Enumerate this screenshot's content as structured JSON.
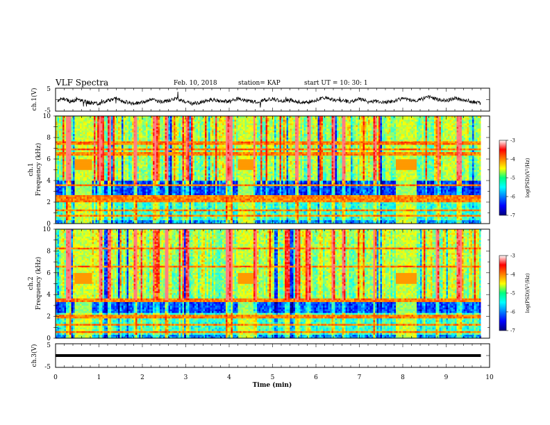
{
  "header": {
    "title": "VLF Spectra",
    "date": "Feb. 10, 2018",
    "station": "station= KAP",
    "start": "start  UT  =   10: 30: 1"
  },
  "chart_data": [
    {
      "type": "line",
      "title": "",
      "ylabel": "ch.1(V)",
      "ylim": [
        -5,
        5
      ],
      "yticks": [
        "5",
        "-5"
      ],
      "xlim": [
        0,
        10
      ],
      "series": [
        {
          "x": [
            0.05,
            0.2,
            0.35,
            0.5,
            0.65,
            0.8,
            1.0,
            1.2,
            1.4,
            1.6,
            1.8,
            2.0,
            2.2,
            2.4,
            2.6,
            2.8,
            3.0,
            3.2,
            3.4,
            3.6,
            3.8,
            4.0,
            4.2,
            4.4,
            4.6,
            4.8,
            5.0,
            5.2,
            5.4,
            5.6,
            5.8,
            6.0,
            6.2,
            6.4,
            6.6,
            6.8,
            7.0,
            7.2,
            7.4,
            7.6,
            7.8,
            8.0,
            8.2,
            8.4,
            8.6,
            8.8,
            9.0,
            9.2,
            9.4,
            9.6,
            9.8
          ],
          "y": [
            -0.5,
            0.5,
            -1,
            0.2,
            -0.8,
            -1.5,
            -2,
            -0.5,
            0.5,
            -1,
            -2,
            -1,
            0,
            -1,
            -0.5,
            0.5,
            -1,
            -1.8,
            -1,
            0,
            -0.5,
            -1,
            0.5,
            -0.5,
            -1,
            -0.3,
            0.5,
            -0.8,
            0,
            -1,
            -1.5,
            -0.3,
            1,
            0,
            -0.5,
            -1,
            0.3,
            -0.5,
            -1,
            -1.5,
            -0.5,
            0.5,
            -0.5,
            0,
            1.2,
            0.2,
            -0.5,
            0.8,
            0,
            -1,
            -1.8
          ]
        }
      ]
    },
    {
      "type": "heatmap",
      "title": "",
      "ylabel": "ch.1\nFrequency  (kHz)",
      "xlim": [
        0,
        10
      ],
      "ylim": [
        0,
        10
      ],
      "yticks": [
        "0",
        "2",
        "4",
        "6",
        "8",
        "10"
      ],
      "colorbar": {
        "label": "log(PSD)(V²/Hz)",
        "ticks": [
          "-3",
          "-4",
          "-5",
          "-6",
          "-7"
        ],
        "range": [
          -7,
          -3
        ]
      },
      "quiet_band_khz": [
        2.5,
        4.0
      ],
      "interference_lines_khz": [
        0.8,
        1.3,
        2.1,
        2.3,
        2.5,
        3.6,
        6.5,
        6.9,
        7.5
      ],
      "bursts_min": [
        [
          0.45,
          0.85
        ],
        [
          4.2,
          4.55
        ],
        [
          7.85,
          8.3
        ]
      ],
      "impulses_min": [
        0.3,
        1.05,
        1.25,
        1.85,
        2.3,
        2.55,
        3.05,
        3.95,
        4.05,
        4.6,
        5.55,
        5.85,
        6.4,
        6.65,
        7.35,
        8.8,
        9.3
      ]
    },
    {
      "type": "heatmap",
      "title": "",
      "ylabel": "ch.2\nFrequency  (kHz)",
      "xlim": [
        0,
        10
      ],
      "ylim": [
        0,
        10
      ],
      "yticks": [
        "0",
        "2",
        "4",
        "6",
        "8",
        "10"
      ],
      "colorbar": {
        "label": "log(PSD)(V²/Hz)",
        "ticks": [
          "-3",
          "-4",
          "-5",
          "-6",
          "-7"
        ],
        "range": [
          -7,
          -3
        ]
      },
      "quiet_band_khz": [
        2.4,
        3.4
      ],
      "interference_lines_khz": [
        0.6,
        1.3,
        1.9,
        2.1,
        3.5,
        6.6,
        8.2
      ],
      "bursts_min": [
        [
          0.45,
          0.85
        ],
        [
          4.2,
          4.55
        ],
        [
          7.85,
          8.3
        ]
      ],
      "impulses_min": [
        0.3,
        1.05,
        1.25,
        1.85,
        2.3,
        2.55,
        3.05,
        3.95,
        4.05,
        4.6,
        5.55,
        5.85,
        6.4,
        6.65,
        7.35,
        8.8,
        9.3
      ]
    },
    {
      "type": "line",
      "title": "",
      "ylabel": "ch.3(V)",
      "xlabel": "Time  (min)",
      "ylim": [
        -5,
        5
      ],
      "yticks": [
        "5",
        "-5"
      ],
      "xlim": [
        0,
        10
      ],
      "xticks": [
        "0",
        "1",
        "2",
        "3",
        "4",
        "5",
        "6",
        "7",
        "8",
        "9",
        "10"
      ],
      "series": [
        {
          "x": [
            0,
            9.8
          ],
          "y": [
            0,
            0
          ]
        }
      ]
    }
  ]
}
